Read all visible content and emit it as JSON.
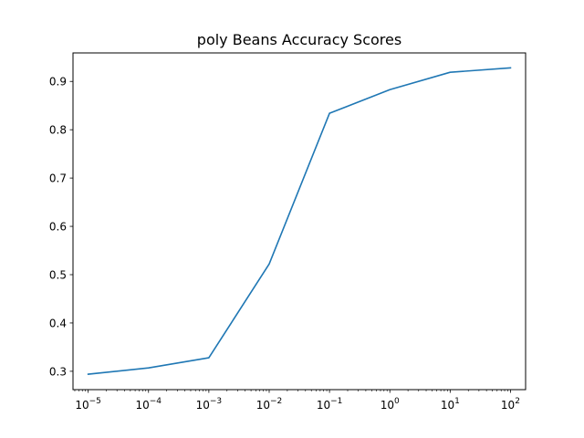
{
  "chart_data": {
    "type": "line",
    "title": "poly Beans Accuracy Scores",
    "xlabel": "",
    "ylabel": "",
    "xscale": "log",
    "xlim": [
      5.6e-06,
      178
    ],
    "ylim": [
      0.262,
      0.959
    ],
    "grid": false,
    "x_ticks": [
      {
        "value": 1e-05,
        "base": "10",
        "exp": "−5"
      },
      {
        "value": 0.0001,
        "base": "10",
        "exp": "−4"
      },
      {
        "value": 0.001,
        "base": "10",
        "exp": "−3"
      },
      {
        "value": 0.01,
        "base": "10",
        "exp": "−2"
      },
      {
        "value": 0.1,
        "base": "10",
        "exp": "−1"
      },
      {
        "value": 1,
        "base": "10",
        "exp": "0"
      },
      {
        "value": 10,
        "base": "10",
        "exp": "1"
      },
      {
        "value": 100,
        "base": "10",
        "exp": "2"
      }
    ],
    "y_ticks": [
      "0.3",
      "0.4",
      "0.5",
      "0.6",
      "0.7",
      "0.8",
      "0.9"
    ],
    "series": [
      {
        "color": "#1f77b4",
        "x": [
          1e-05,
          0.0001,
          0.001,
          0.01,
          0.1,
          1,
          10,
          100
        ],
        "y": [
          0.294,
          0.307,
          0.328,
          0.522,
          0.834,
          0.883,
          0.919,
          0.928
        ]
      }
    ]
  }
}
